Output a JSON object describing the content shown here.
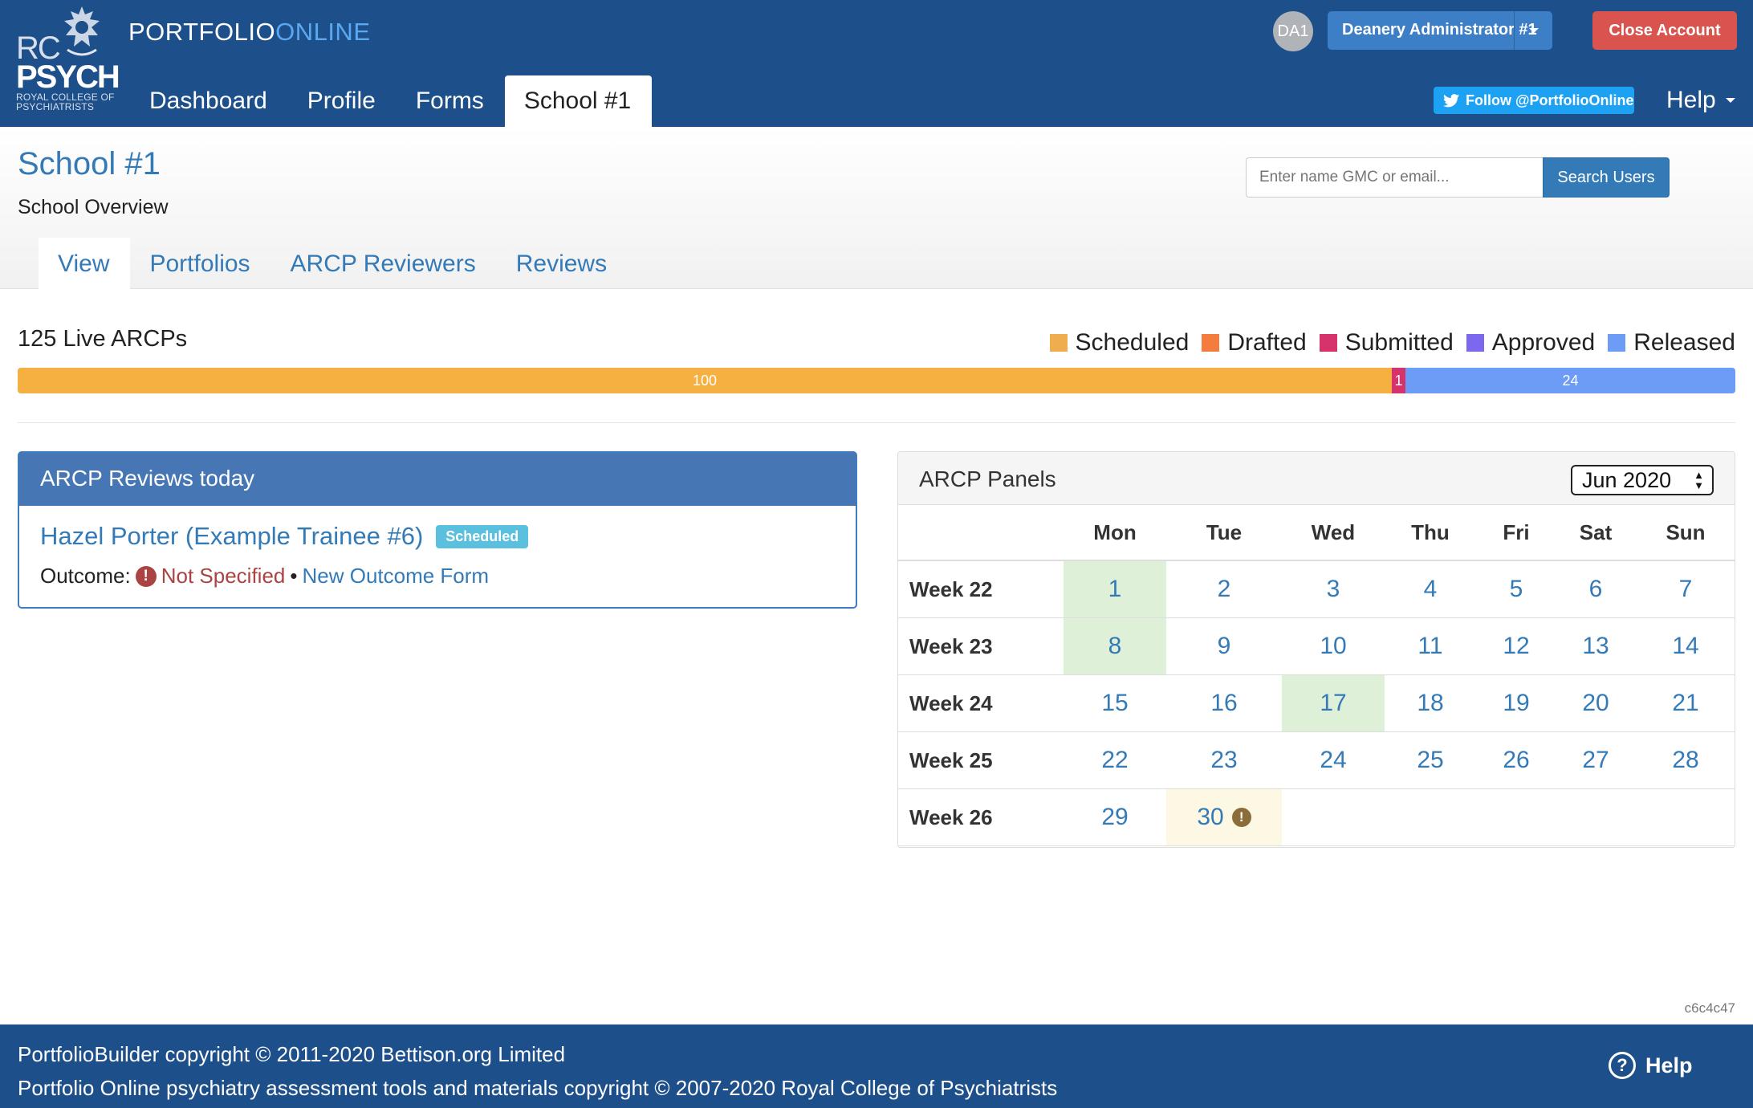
{
  "header": {
    "logo": {
      "rc": "RC",
      "psych": "PSYCH",
      "sub1": "ROYAL COLLEGE OF",
      "sub2": "PSYCHIATRISTS"
    },
    "brand_part1": "PORTFOLIO",
    "brand_part2": "ONLINE",
    "nav": [
      {
        "label": "Dashboard",
        "active": false
      },
      {
        "label": "Profile",
        "active": false
      },
      {
        "label": "Forms",
        "active": false
      },
      {
        "label": "School #1",
        "active": true
      }
    ],
    "avatar_initials": "DA1",
    "user_menu_label": "Deanery Administrator #1",
    "close_account_label": "Close Account",
    "twitter_label": "Follow @PortfolioOnline",
    "help_label": "Help"
  },
  "page": {
    "title": "School #1",
    "subtitle": "School Overview",
    "search_placeholder": "Enter name GMC or email...",
    "search_button": "Search Users",
    "tabs": [
      {
        "label": "View",
        "active": true
      },
      {
        "label": "Portfolios",
        "active": false
      },
      {
        "label": "ARCP Reviewers",
        "active": false
      },
      {
        "label": "Reviews",
        "active": false
      }
    ]
  },
  "arcp_summary": {
    "live_label": "125 Live ARCPs",
    "legend": [
      {
        "label": "Scheduled",
        "color": "#f0ad4e"
      },
      {
        "label": "Drafted",
        "color": "#f47c3c"
      },
      {
        "label": "Submitted",
        "color": "#d6336c"
      },
      {
        "label": "Approved",
        "color": "#7b68ee"
      },
      {
        "label": "Released",
        "color": "#6c9cf6"
      }
    ],
    "segments": [
      {
        "label": "100",
        "value": 100,
        "color": "#f5b041"
      },
      {
        "label": "1",
        "value": 1,
        "color": "#d6336c"
      },
      {
        "label": "24",
        "value": 24,
        "color": "#6c9cf6"
      }
    ]
  },
  "reviews_today": {
    "title": "ARCP Reviews today",
    "trainee": "Hazel Porter (Example Trainee #6)",
    "badge": "Scheduled",
    "outcome_label": "Outcome:",
    "outcome_value": "Not Specified",
    "separator": "•",
    "new_form_link": "New Outcome Form"
  },
  "panels": {
    "title": "ARCP Panels",
    "month": "Jun 2020",
    "days": [
      "Mon",
      "Tue",
      "Wed",
      "Thu",
      "Fri",
      "Sat",
      "Sun"
    ],
    "weeks": [
      {
        "label": "Week 22",
        "dates": [
          "1",
          "2",
          "3",
          "4",
          "5",
          "6",
          "7"
        ],
        "hl": [
          "green",
          "",
          "",
          "",
          "",
          "",
          ""
        ]
      },
      {
        "label": "Week 23",
        "dates": [
          "8",
          "9",
          "10",
          "11",
          "12",
          "13",
          "14"
        ],
        "hl": [
          "green",
          "",
          "",
          "",
          "",
          "",
          ""
        ]
      },
      {
        "label": "Week 24",
        "dates": [
          "15",
          "16",
          "17",
          "18",
          "19",
          "20",
          "21"
        ],
        "hl": [
          "",
          "",
          "green",
          "",
          "",
          "",
          ""
        ]
      },
      {
        "label": "Week 25",
        "dates": [
          "22",
          "23",
          "24",
          "25",
          "26",
          "27",
          "28"
        ],
        "hl": [
          "",
          "",
          "",
          "",
          "",
          "",
          ""
        ]
      },
      {
        "label": "Week 26",
        "dates": [
          "29",
          "30",
          "",
          "",
          "",
          "",
          ""
        ],
        "hl": [
          "",
          "yellow",
          "",
          "",
          "",
          "",
          ""
        ],
        "warn": [
          false,
          true,
          false,
          false,
          false,
          false,
          false
        ]
      }
    ]
  },
  "version": "c6c4c47",
  "footer": {
    "line1": "PortfolioBuilder copyright © 2011-2020 Bettison.org Limited",
    "line2": "Portfolio Online psychiatry assessment tools and materials copyright © 2007-2020 Royal College of Psychiatrists",
    "help_label": "Help"
  }
}
